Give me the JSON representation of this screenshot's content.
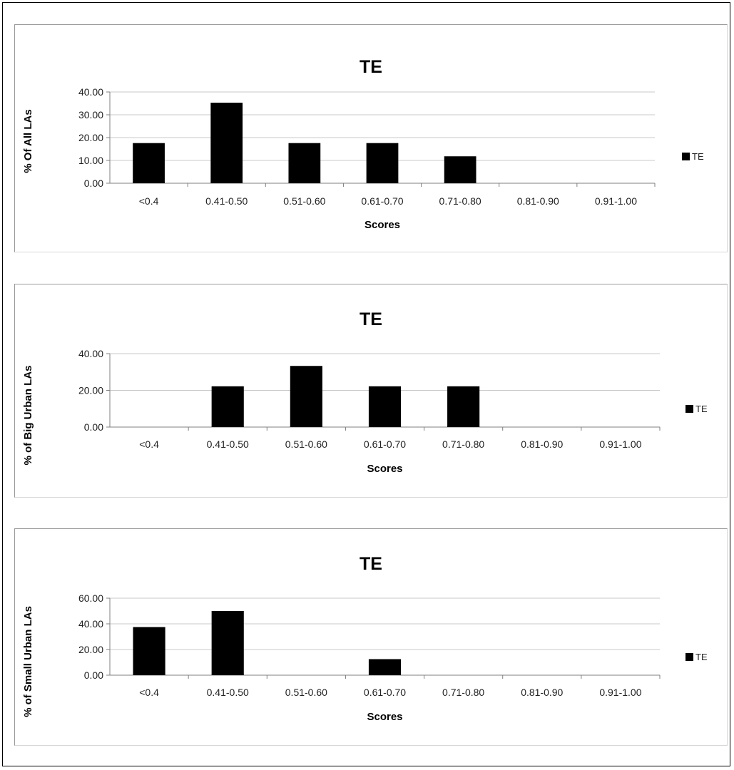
{
  "chart_data": [
    {
      "type": "bar",
      "title": "TE",
      "xlabel": "Scores",
      "ylabel": "% Of All LAs",
      "categories": [
        "<0.4",
        "0.41-0.50",
        "0.51-0.60",
        "0.61-0.70",
        "0.71-0.80",
        "0.81-0.90",
        "0.91-1.00"
      ],
      "series": [
        {
          "name": "TE",
          "values": [
            17.6,
            35.3,
            17.6,
            17.6,
            11.8,
            0,
            0
          ],
          "color": "#000000"
        }
      ],
      "ylim": [
        0,
        40
      ],
      "yticks": [
        "0.00",
        "10.00",
        "20.00",
        "30.00",
        "40.00"
      ],
      "grid": true,
      "legend": "right"
    },
    {
      "type": "bar",
      "title": "TE",
      "xlabel": "Scores",
      "ylabel": "% of Big Urban LAs",
      "categories": [
        "<0.4",
        "0.41-0.50",
        "0.51-0.60",
        "0.61-0.70",
        "0.71-0.80",
        "0.81-0.90",
        "0.91-1.00"
      ],
      "series": [
        {
          "name": "TE",
          "values": [
            0,
            22.2,
            33.3,
            22.2,
            22.2,
            0,
            0
          ],
          "color": "#000000"
        }
      ],
      "ylim": [
        0,
        40
      ],
      "yticks": [
        "0.00",
        "20.00",
        "40.00"
      ],
      "grid": true,
      "legend": "right"
    },
    {
      "type": "bar",
      "title": "TE",
      "xlabel": "Scores",
      "ylabel": "% of Small Urban LAs",
      "categories": [
        "<0.4",
        "0.41-0.50",
        "0.51-0.60",
        "0.61-0.70",
        "0.71-0.80",
        "0.81-0.90",
        "0.91-1.00"
      ],
      "series": [
        {
          "name": "TE",
          "values": [
            37.5,
            50.0,
            0,
            12.5,
            0,
            0,
            0
          ],
          "color": "#000000"
        }
      ],
      "ylim": [
        0,
        60
      ],
      "yticks": [
        "0.00",
        "20.00",
        "40.00",
        "60.00"
      ],
      "grid": true,
      "legend": "right"
    }
  ]
}
